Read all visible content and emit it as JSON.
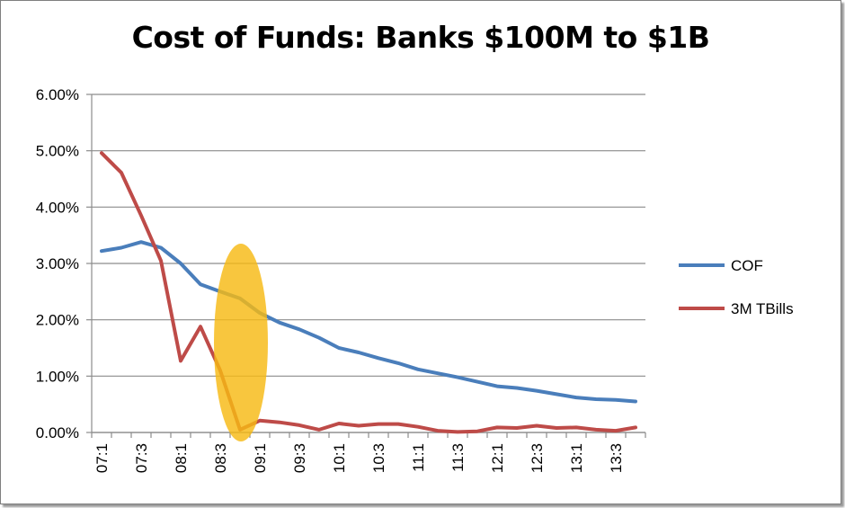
{
  "chart_data": {
    "type": "line",
    "title": "Cost of Funds: Banks $100M to $1B",
    "xlabel": "",
    "ylabel": "",
    "ylim": [
      0,
      0.06
    ],
    "y_ticks": [
      "0.00%",
      "1.00%",
      "2.00%",
      "3.00%",
      "4.00%",
      "5.00%",
      "6.00%"
    ],
    "x_ticks": [
      "07:1",
      "07:3",
      "08:1",
      "08:3",
      "09:1",
      "09:3",
      "10:1",
      "10:3",
      "11:1",
      "11:3",
      "12:1",
      "12:3",
      "13:1",
      "13:3"
    ],
    "x": [
      "07:1",
      "07:2",
      "07:3",
      "07:4",
      "08:1",
      "08:2",
      "08:3",
      "08:4",
      "09:1",
      "09:2",
      "09:3",
      "09:4",
      "10:1",
      "10:2",
      "10:3",
      "10:4",
      "11:1",
      "11:2",
      "11:3",
      "11:4",
      "12:1",
      "12:2",
      "12:3",
      "12:4",
      "13:1",
      "13:2",
      "13:3",
      "13:4"
    ],
    "series": [
      {
        "name": "COF",
        "color": "#4a7ebb",
        "values": [
          0.0322,
          0.0328,
          0.0338,
          0.0328,
          0.03,
          0.0263,
          0.025,
          0.0238,
          0.0212,
          0.0195,
          0.0183,
          0.0168,
          0.015,
          0.0142,
          0.0132,
          0.0123,
          0.0112,
          0.0105,
          0.0098,
          0.009,
          0.0082,
          0.0079,
          0.0074,
          0.0068,
          0.0062,
          0.0059,
          0.0058,
          0.0055
        ]
      },
      {
        "name": "3M TBills",
        "color": "#be4b48",
        "values": [
          0.0496,
          0.0461,
          0.0385,
          0.0305,
          0.0127,
          0.0188,
          0.011,
          0.0005,
          0.0021,
          0.0018,
          0.0013,
          0.0005,
          0.0016,
          0.0012,
          0.0015,
          0.0015,
          0.001,
          0.0003,
          0.0001,
          0.0002,
          0.0009,
          0.0008,
          0.0012,
          0.0008,
          0.0009,
          0.0005,
          0.0003,
          0.0009
        ]
      }
    ],
    "annotation": {
      "type": "ellipse",
      "color": "#f6b914",
      "around_x": "08:4"
    },
    "grid": true,
    "legend_position": "right"
  }
}
